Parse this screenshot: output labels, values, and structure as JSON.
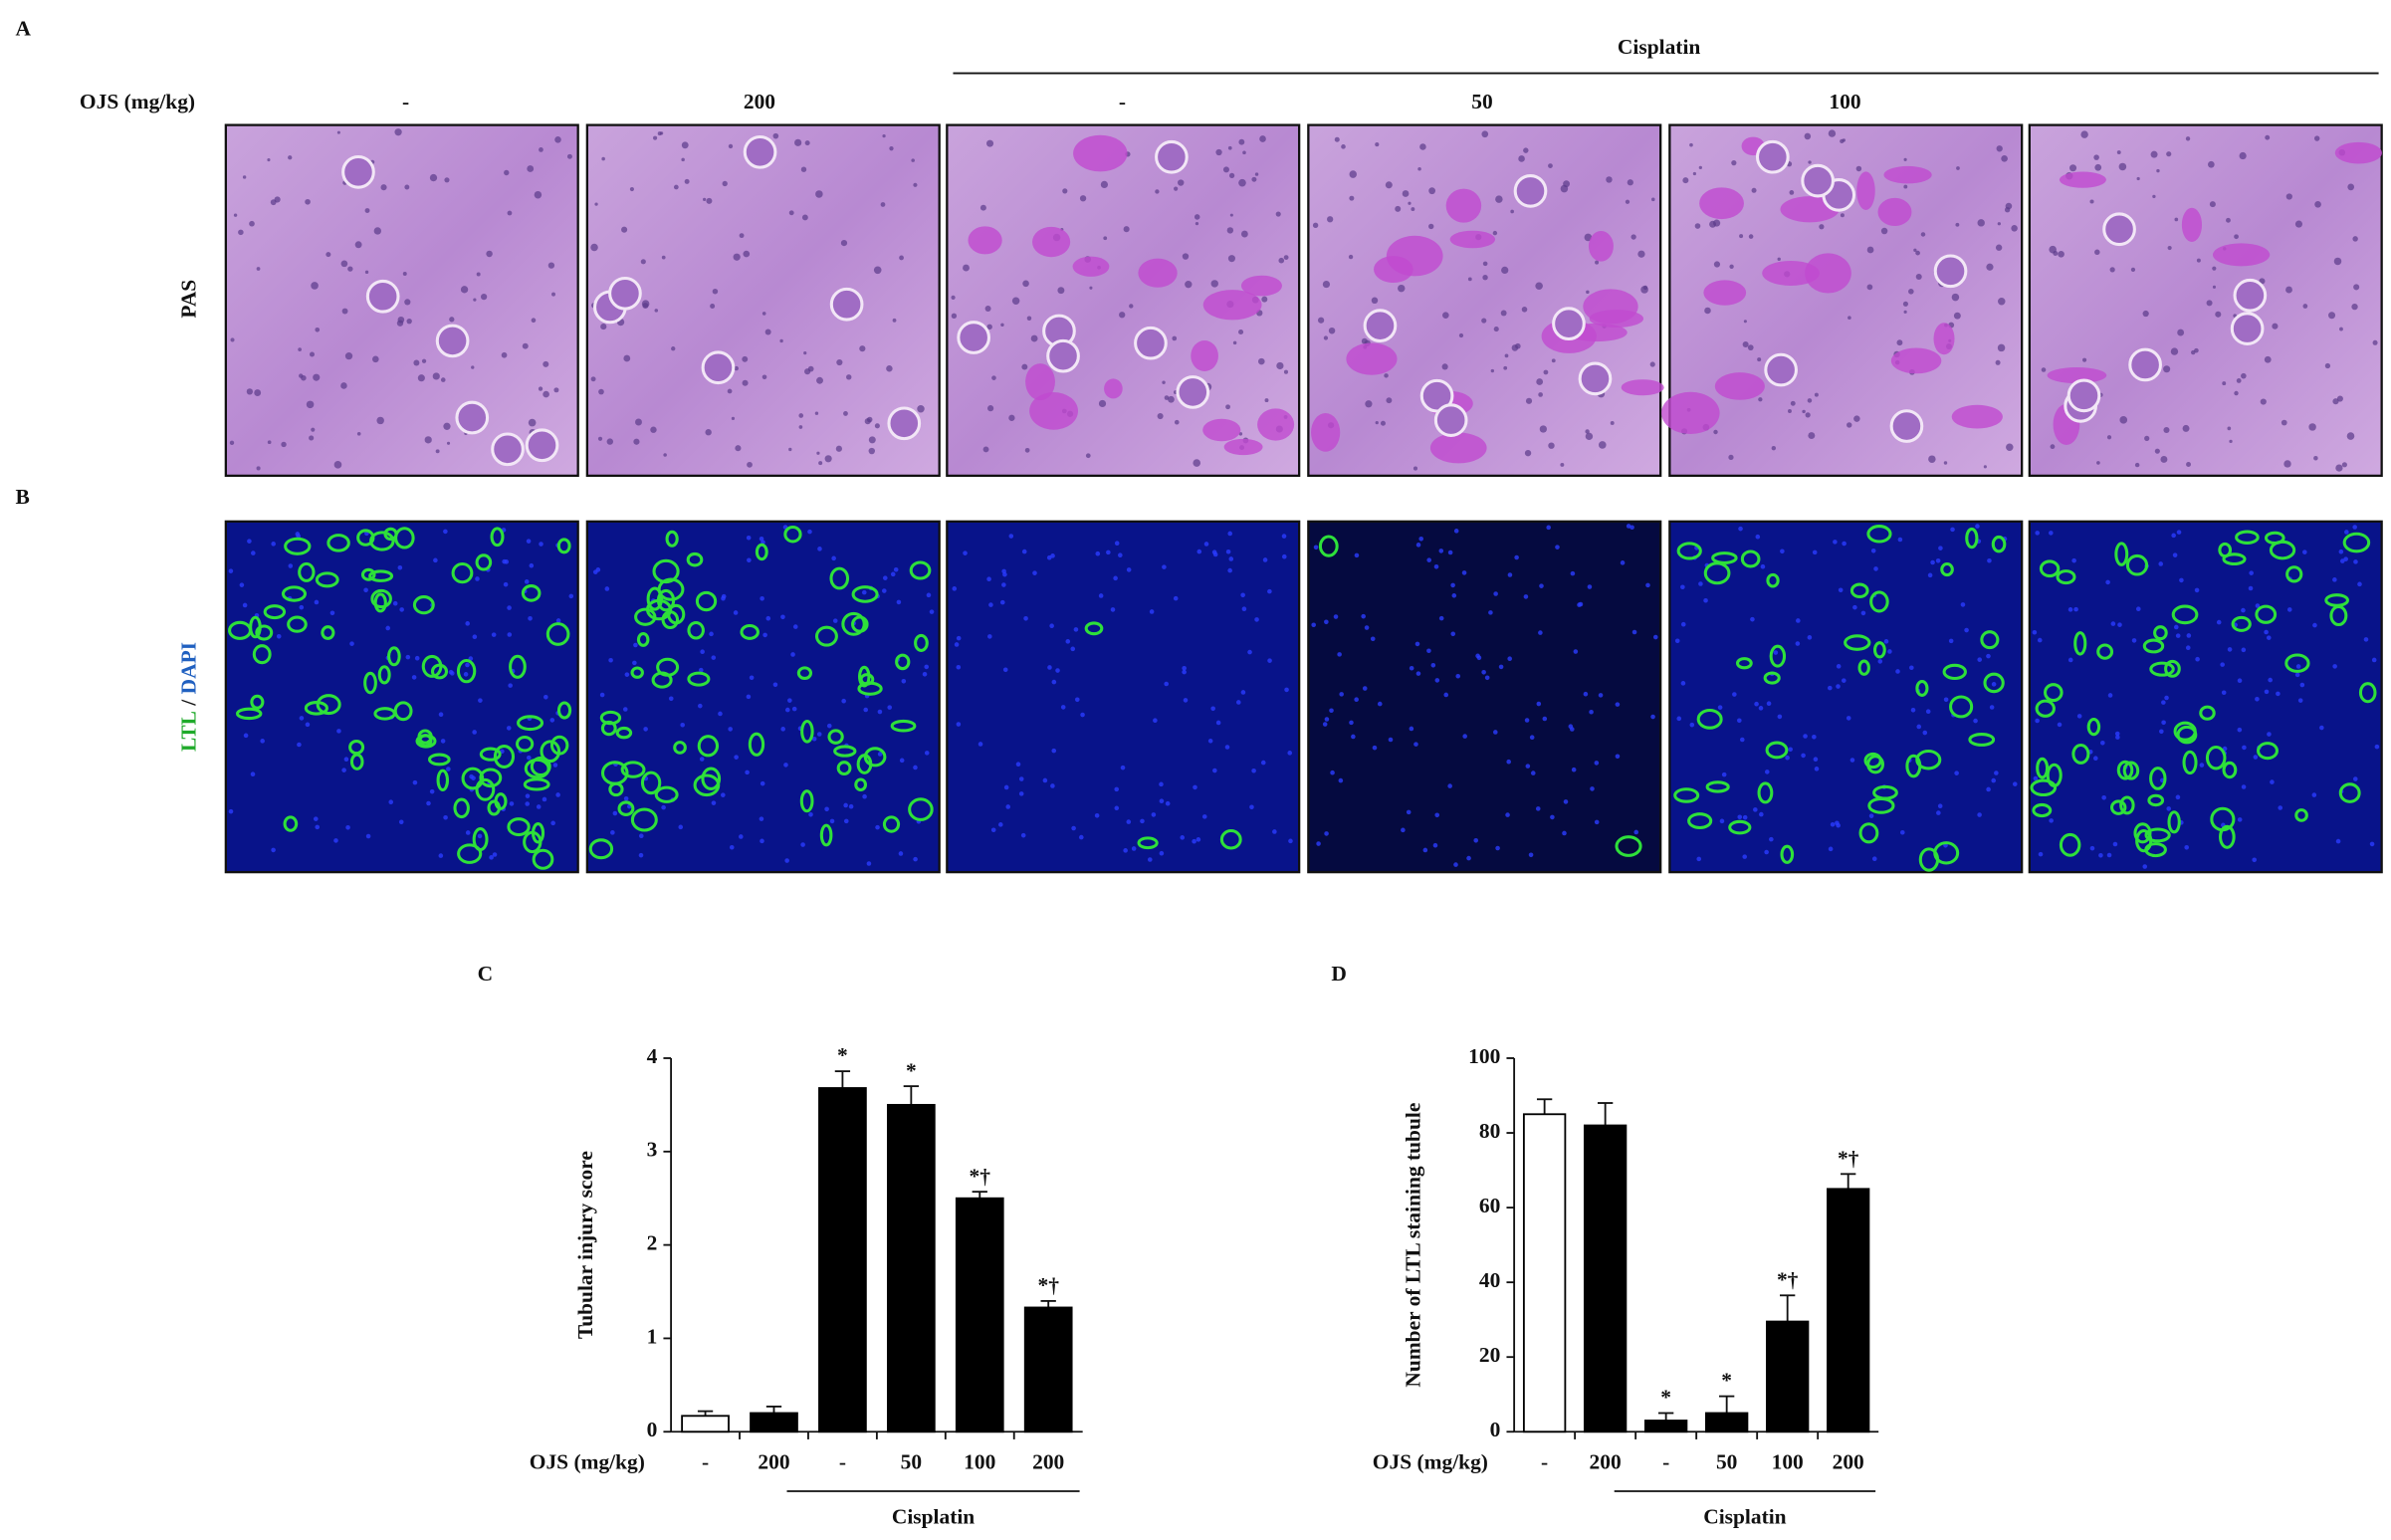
{
  "panel_a": {
    "label": "A",
    "group": "Cisplatin",
    "dose_label": "OJS (mg/kg)",
    "doses": [
      "-",
      "200",
      "-",
      "50",
      "100"
    ],
    "stain": "PAS"
  },
  "panel_b": {
    "label": "B",
    "stain_parts": [
      "LTL",
      "/",
      "DAPI"
    ]
  },
  "chart_data": [
    {
      "type": "bar",
      "panel": "C",
      "ylabel": "Tubular injury score",
      "x_group_label": "OJS (mg/kg)",
      "bracket_label": "Cisplatin",
      "categories": [
        "-",
        "200",
        "-",
        "50",
        "100",
        "200"
      ],
      "values": [
        0.17,
        0.2,
        3.68,
        3.5,
        2.5,
        1.33
      ],
      "errors": [
        0.05,
        0.07,
        0.18,
        0.2,
        0.07,
        0.07
      ],
      "colors": [
        "#ffffff",
        "#000000",
        "#000000",
        "#000000",
        "#000000",
        "#000000"
      ],
      "annotations": [
        null,
        null,
        "*",
        "*",
        "*†",
        "*†"
      ],
      "ylim": [
        0,
        4
      ],
      "yticks": [
        0,
        1,
        2,
        3,
        4
      ]
    },
    {
      "type": "bar",
      "panel": "D",
      "ylabel": "Number of LTL staining tubule",
      "x_group_label": "OJS (mg/kg)",
      "bracket_label": "Cisplatin",
      "categories": [
        "-",
        "200",
        "-",
        "50",
        "100",
        "200"
      ],
      "values": [
        85,
        82,
        3,
        5,
        29.5,
        65
      ],
      "errors": [
        4,
        6,
        2,
        4.5,
        7,
        4
      ],
      "colors": [
        "#ffffff",
        "#000000",
        "#000000",
        "#000000",
        "#000000",
        "#000000"
      ],
      "annotations": [
        null,
        null,
        "*",
        "*",
        "*†",
        "*†"
      ],
      "ylim": [
        0,
        100
      ],
      "yticks": [
        0,
        20,
        40,
        60,
        80,
        100
      ]
    }
  ]
}
